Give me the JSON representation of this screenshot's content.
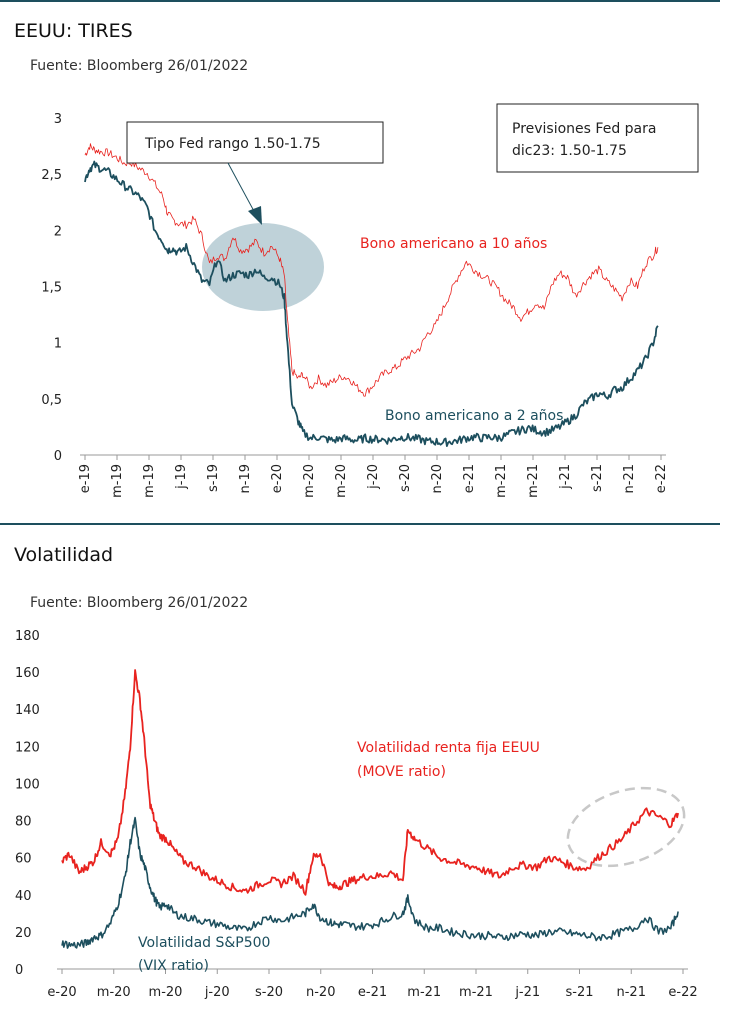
{
  "colors": {
    "red": "#e8231f",
    "teal": "#1d4f5e",
    "highlight": "#a9c3cc",
    "dash": "#c8c8c8"
  },
  "panel1": {
    "title": "EEUU: TIRES",
    "source": "Fuente: Bloomberg 26/01/2022",
    "annotation_box_1": "Tipo Fed  rango 1.50-1.75",
    "annotation_box_2_line1": "Previsiones Fed para",
    "annotation_box_2_line2": "dic23: 1.50-1.75"
  },
  "panel2": {
    "title": "Volatilidad",
    "source": "Fuente: Bloomberg 26/01/2022"
  },
  "chart_data": [
    {
      "type": "line",
      "title": "EEUU: TIRES",
      "ylim": [
        0,
        3
      ],
      "yticks": [
        "0",
        "0,5",
        "1",
        "1,5",
        "2",
        "2,5",
        "3"
      ],
      "xlim": [
        0,
        37
      ],
      "xtick_labels": [
        "e-19",
        "m-19",
        "m-19",
        "j-19",
        "s-19",
        "n-19",
        "e-20",
        "m-20",
        "m-20",
        "j-20",
        "s-20",
        "n-20",
        "e-21",
        "m-21",
        "m-21",
        "j-21",
        "s-21",
        "n-21",
        "e-22"
      ],
      "series": [
        {
          "name": "Bono americano a 10 años",
          "color": "#e8231f",
          "x": [
            0,
            0.3,
            0.6,
            1,
            1.5,
            2,
            2.5,
            3,
            3.5,
            4,
            4.5,
            5,
            5.3,
            5.6,
            6,
            6.5,
            7,
            7.5,
            8,
            8.5,
            9,
            9.5,
            10,
            10.5,
            11,
            11.5,
            12,
            12.5,
            12.8,
            13,
            13.3,
            13.7,
            14,
            14.5,
            15,
            15.5,
            16,
            16.5,
            17,
            17.5,
            18,
            18.5,
            19,
            19.5,
            20,
            20.5,
            21,
            21.5,
            22,
            22.5,
            23,
            23.5,
            24,
            24.5,
            25,
            25.5,
            26,
            26.5,
            27,
            27.5,
            28,
            28.5,
            29,
            29.5,
            30,
            30.5,
            31,
            31.5,
            32,
            32.5,
            33,
            33.5,
            34,
            34.5,
            35,
            35.5,
            36,
            36.5,
            36.8
          ],
          "values": [
            2.67,
            2.75,
            2.72,
            2.7,
            2.69,
            2.65,
            2.6,
            2.6,
            2.55,
            2.51,
            2.41,
            2.3,
            2.15,
            2.1,
            2.06,
            2.05,
            2.1,
            1.95,
            1.7,
            1.78,
            1.75,
            1.95,
            1.82,
            1.84,
            1.9,
            1.8,
            1.86,
            1.75,
            1.6,
            1.2,
            0.75,
            0.68,
            0.72,
            0.6,
            0.68,
            0.62,
            0.66,
            0.7,
            0.68,
            0.6,
            0.55,
            0.62,
            0.7,
            0.75,
            0.78,
            0.85,
            0.9,
            0.95,
            1.08,
            1.15,
            1.3,
            1.45,
            1.6,
            1.72,
            1.65,
            1.6,
            1.55,
            1.48,
            1.38,
            1.32,
            1.22,
            1.28,
            1.36,
            1.3,
            1.52,
            1.62,
            1.58,
            1.42,
            1.52,
            1.6,
            1.65,
            1.55,
            1.48,
            1.4,
            1.55,
            1.5,
            1.7,
            1.78,
            1.85
          ]
        },
        {
          "name": "Bono americano a 2 años",
          "color": "#1d4f5e",
          "x": [
            0,
            0.3,
            0.6,
            1,
            1.5,
            2,
            2.5,
            3,
            3.5,
            4,
            4.5,
            5,
            5.3,
            5.6,
            6,
            6.5,
            7,
            7.5,
            8,
            8.5,
            9,
            9.5,
            10,
            10.5,
            11,
            11.5,
            12,
            12.5,
            12.8,
            13,
            13.3,
            13.7,
            14,
            14.5,
            15,
            15.5,
            16,
            16.5,
            17,
            17.5,
            18,
            18.5,
            19,
            19.5,
            20,
            20.5,
            21,
            21.5,
            22,
            22.5,
            23,
            23.5,
            24,
            24.5,
            25,
            25.5,
            26,
            26.5,
            27,
            27.5,
            28,
            28.5,
            29,
            29.5,
            30,
            30.5,
            31,
            31.5,
            32,
            32.5,
            33,
            33.5,
            34,
            34.5,
            35,
            35.5,
            36,
            36.5,
            36.8
          ],
          "values": [
            2.45,
            2.55,
            2.58,
            2.55,
            2.52,
            2.46,
            2.4,
            2.35,
            2.3,
            2.2,
            2.0,
            1.9,
            1.82,
            1.84,
            1.8,
            1.85,
            1.7,
            1.55,
            1.52,
            1.75,
            1.55,
            1.6,
            1.62,
            1.6,
            1.65,
            1.58,
            1.58,
            1.52,
            1.4,
            1.0,
            0.45,
            0.3,
            0.2,
            0.15,
            0.16,
            0.14,
            0.13,
            0.15,
            0.14,
            0.13,
            0.15,
            0.14,
            0.14,
            0.13,
            0.15,
            0.16,
            0.15,
            0.14,
            0.12,
            0.12,
            0.11,
            0.12,
            0.13,
            0.15,
            0.16,
            0.15,
            0.16,
            0.15,
            0.17,
            0.2,
            0.22,
            0.24,
            0.22,
            0.2,
            0.22,
            0.25,
            0.3,
            0.35,
            0.45,
            0.5,
            0.55,
            0.52,
            0.58,
            0.6,
            0.68,
            0.75,
            0.85,
            1.0,
            1.15
          ]
        }
      ]
    },
    {
      "type": "line",
      "title": "Volatilidad",
      "ylim": [
        0,
        180
      ],
      "yticks": [
        "0",
        "20",
        "40",
        "60",
        "80",
        "100",
        "120",
        "140",
        "160",
        "180"
      ],
      "xlim": [
        0,
        25.5
      ],
      "xtick_labels": [
        "e-20",
        "m-20",
        "m-20",
        "j-20",
        "s-20",
        "n-20",
        "e-21",
        "m-21",
        "m-21",
        "j-21",
        "s-21",
        "n-21",
        "e-22"
      ],
      "series": [
        {
          "name": "Volatilidad renta fija EEUU (MOVE ratio)",
          "color": "#e8231f",
          "x": [
            0,
            0.3,
            0.7,
            1,
            1.3,
            1.6,
            2,
            2.3,
            2.6,
            2.8,
            3,
            3.2,
            3.4,
            3.6,
            3.8,
            4,
            4.3,
            4.6,
            5,
            5.5,
            6,
            6.5,
            7,
            7.5,
            8,
            8.5,
            9,
            9.5,
            10,
            10.3,
            10.6,
            11,
            11.3,
            11.6,
            12,
            12.5,
            13,
            13.5,
            14,
            14.2,
            14.5,
            15,
            15.5,
            16,
            16.5,
            17,
            17.5,
            18,
            18.5,
            19,
            19.5,
            20,
            20.5,
            21,
            21.5,
            22,
            22.5,
            23,
            23.5,
            24,
            24.5,
            25,
            25.3
          ],
          "values": [
            58,
            62,
            52,
            55,
            58,
            68,
            62,
            70,
            95,
            120,
            160,
            145,
            120,
            90,
            80,
            72,
            70,
            64,
            58,
            55,
            50,
            47,
            44,
            42,
            45,
            48,
            46,
            50,
            42,
            60,
            62,
            45,
            44,
            46,
            48,
            50,
            50,
            52,
            48,
            75,
            70,
            65,
            60,
            58,
            56,
            55,
            52,
            50,
            55,
            56,
            55,
            60,
            58,
            55,
            54,
            60,
            65,
            70,
            78,
            85,
            82,
            78,
            84
          ]
        },
        {
          "name": "Volatilidad S&P500 (VIX ratio)",
          "color": "#1d4f5e",
          "x": [
            0,
            0.3,
            0.7,
            1,
            1.3,
            1.6,
            2,
            2.3,
            2.6,
            2.8,
            3,
            3.2,
            3.4,
            3.6,
            3.8,
            4,
            4.3,
            4.6,
            5,
            5.5,
            6,
            6.5,
            7,
            7.5,
            8,
            8.5,
            9,
            9.5,
            10,
            10.3,
            10.6,
            11,
            11.3,
            11.6,
            12,
            12.5,
            13,
            13.5,
            14,
            14.2,
            14.5,
            15,
            15.5,
            16,
            16.5,
            17,
            17.5,
            18,
            18.5,
            19,
            19.5,
            20,
            20.5,
            21,
            21.5,
            22,
            22.5,
            23,
            23.5,
            24,
            24.5,
            25,
            25.3
          ],
          "values": [
            14,
            13,
            13,
            14,
            17,
            18,
            25,
            35,
            50,
            68,
            80,
            62,
            55,
            45,
            38,
            33,
            35,
            30,
            28,
            27,
            25,
            24,
            22,
            21,
            25,
            28,
            26,
            28,
            30,
            35,
            28,
            25,
            24,
            24,
            23,
            23,
            25,
            28,
            30,
            38,
            26,
            22,
            22,
            20,
            19,
            18,
            18,
            17,
            18,
            19,
            18,
            20,
            20,
            19,
            18,
            17,
            18,
            20,
            22,
            28,
            20,
            22,
            31
          ]
        }
      ]
    }
  ]
}
